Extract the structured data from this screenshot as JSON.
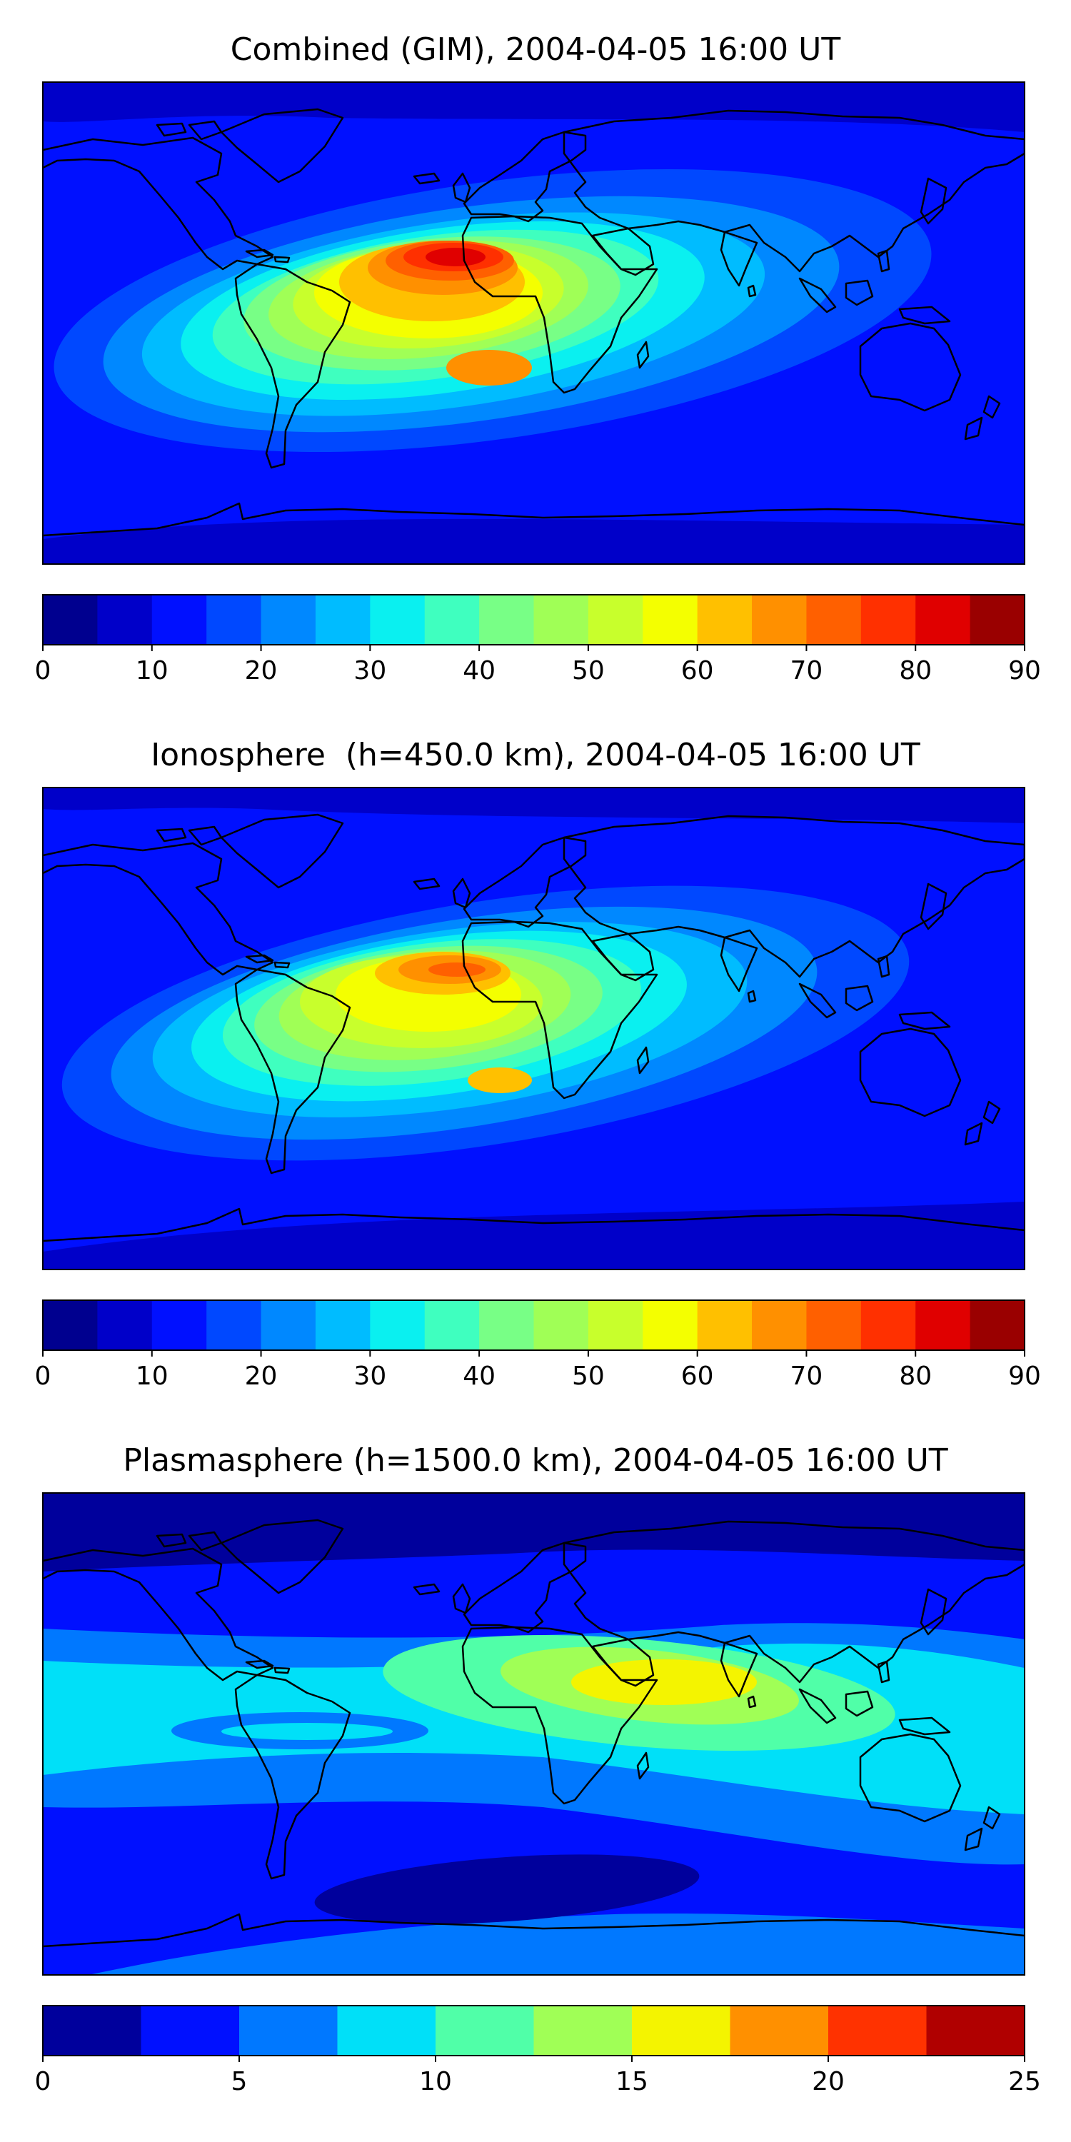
{
  "palette": {
    "ocean": "#0a24ef",
    "coast": "#000000",
    "colors_18": [
      "#00008f",
      "#0000c9",
      "#0010ff",
      "#0048ff",
      "#0088ff",
      "#00bcff",
      "#0af0f0",
      "#3fffbf",
      "#78ff86",
      "#a0ff56",
      "#c8ff2c",
      "#f4ff00",
      "#ffc000",
      "#ff9000",
      "#ff6000",
      "#ff3000",
      "#e00000",
      "#9a0000"
    ],
    "colors_10": [
      "#00009c",
      "#0010ff",
      "#0078ff",
      "#00e0f8",
      "#50ffa8",
      "#a0ff56",
      "#f4f400",
      "#ff9000",
      "#ff3200",
      "#b00000"
    ]
  },
  "panels": [
    {
      "title": "Combined (GIM), 2004-04-05 16:00 UT",
      "colorbar": {
        "levels": [
          0,
          5,
          10,
          15,
          20,
          25,
          30,
          35,
          40,
          45,
          50,
          55,
          60,
          65,
          70,
          75,
          80,
          85,
          90
        ],
        "ticks": [
          "0",
          "10",
          "20",
          "30",
          "40",
          "50",
          "60",
          "70",
          "80",
          "90"
        ]
      }
    },
    {
      "title": "Ionosphere  (h=450.0 km), 2004-04-05 16:00 UT",
      "colorbar": {
        "levels": [
          0,
          5,
          10,
          15,
          20,
          25,
          30,
          35,
          40,
          45,
          50,
          55,
          60,
          65,
          70,
          75,
          80,
          85,
          90
        ],
        "ticks": [
          "0",
          "10",
          "20",
          "30",
          "40",
          "50",
          "60",
          "70",
          "80",
          "90"
        ]
      }
    },
    {
      "title": "Plasmasphere (h=1500.0 km), 2004-04-05 16:00 UT",
      "colorbar": {
        "levels": [
          0,
          2.5,
          5,
          7.5,
          10,
          12.5,
          15,
          17.5,
          20,
          22.5,
          25
        ],
        "ticks": [
          "0",
          "5",
          "10",
          "15",
          "20",
          "25"
        ]
      }
    }
  ]
}
